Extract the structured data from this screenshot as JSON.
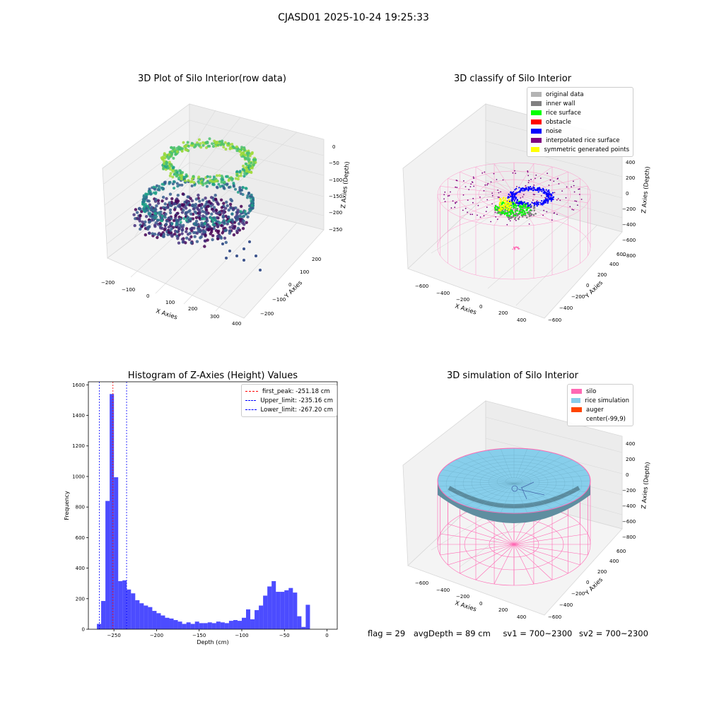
{
  "suptitle": "CJASD01 2025-10-24 19:25:33",
  "panels": {
    "raw": {
      "title": "3D Plot of Silo Interior(row data)",
      "xlabel": "X Axies",
      "ylabel": "Y Axies",
      "zlabel": "Z Axies (Depth)",
      "xticks": [
        "−200",
        "−100",
        "0",
        "100",
        "200",
        "300",
        "400"
      ],
      "yticks": [
        "−200",
        "−100",
        "0",
        "100",
        "200"
      ],
      "zticks": [
        "0",
        "−50",
        "−100",
        "−150",
        "−200",
        "−250"
      ]
    },
    "classify": {
      "title": "3D classify of Silo Interior",
      "xlabel": "X Axies",
      "ylabel": "Y Axies",
      "zlabel": "Z Axies (Depth)",
      "xticks": [
        "−600",
        "−400",
        "−200",
        "0",
        "200",
        "400"
      ],
      "yticks": [
        "−600",
        "−400",
        "−200",
        "0",
        "200",
        "400",
        "600"
      ],
      "zticks": [
        "400",
        "200",
        "0",
        "−200",
        "−400",
        "−600",
        "−800"
      ],
      "legend": [
        {
          "label": "original data",
          "color": "#b3b3b3"
        },
        {
          "label": "inner wall",
          "color": "#808080"
        },
        {
          "label": "rice surface",
          "color": "#00ff00"
        },
        {
          "label": "obstacle",
          "color": "#ff0000"
        },
        {
          "label": "noise",
          "color": "#0000ff"
        },
        {
          "label": "interpolated rice surface",
          "color": "#800080"
        },
        {
          "label": "symmetric generated points",
          "color": "#ffff00"
        }
      ]
    },
    "simulation": {
      "title": "3D simulation of Silo Interior",
      "xlabel": "X Axies",
      "ylabel": "Y Axies",
      "zlabel": "Z Axies (Depth)",
      "xticks": [
        "−600",
        "−400",
        "−200",
        "0",
        "200",
        "400"
      ],
      "yticks": [
        "−600",
        "−400",
        "−200",
        "0",
        "200",
        "400",
        "600"
      ],
      "zticks": [
        "400",
        "200",
        "0",
        "−200",
        "−400",
        "−600",
        "−800"
      ],
      "legend": [
        {
          "label": "silo",
          "color": "#ff69b4"
        },
        {
          "label": "rice simulation",
          "color": "#87ceeb"
        },
        {
          "label": "auger",
          "color": "#ff4500"
        },
        {
          "label": "center(-99,9)",
          "color": ""
        }
      ]
    }
  },
  "footer": {
    "flag": "flag = 29",
    "avg": "avgDepth = 89 cm",
    "sv1": "sv1 = 700~2300",
    "sv2": "sv2 = 700~2300"
  },
  "chart_data": [
    {
      "type": "scatter",
      "title": "3D Plot of Silo Interior(row data)",
      "xlabel": "X Axies",
      "ylabel": "Y Axies",
      "zlabel": "Z Axies (Depth)",
      "xlim": [
        -200,
        400
      ],
      "ylim": [
        -250,
        250
      ],
      "zlim": [
        -300,
        10
      ],
      "colormap": "viridis"
    },
    {
      "type": "scatter",
      "title": "3D classify of Silo Interior",
      "xlabel": "X Axies",
      "ylabel": "Y Axies",
      "zlabel": "Z Axies (Depth)",
      "xlim": [
        -700,
        500
      ],
      "ylim": [
        -650,
        650
      ],
      "zlim": [
        -900,
        450
      ],
      "series": [
        {
          "name": "original data",
          "color": "#b3b3b3"
        },
        {
          "name": "inner wall",
          "color": "#808080"
        },
        {
          "name": "rice surface",
          "color": "#00ff00"
        },
        {
          "name": "obstacle",
          "color": "#ff0000"
        },
        {
          "name": "noise",
          "color": "#0000ff"
        },
        {
          "name": "interpolated rice surface",
          "color": "#800080"
        },
        {
          "name": "symmetric generated points",
          "color": "#ffff00"
        }
      ]
    },
    {
      "type": "bar",
      "title": "Histogram of Z-Axies (Height) Values",
      "xlabel": "Depth (cm)",
      "ylabel": "Frequency",
      "xlim": [
        -280,
        12
      ],
      "ylim": [
        0,
        1620
      ],
      "bin_start": -270,
      "bin_width": 5,
      "values": [
        35,
        185,
        840,
        1540,
        995,
        315,
        320,
        260,
        235,
        190,
        170,
        155,
        145,
        120,
        105,
        90,
        75,
        70,
        60,
        50,
        35,
        45,
        35,
        50,
        40,
        40,
        45,
        40,
        50,
        45,
        40,
        55,
        60,
        55,
        75,
        130,
        65,
        125,
        155,
        220,
        280,
        315,
        245,
        245,
        255,
        270,
        240,
        85,
        15,
        160
      ],
      "color": "#0000ff",
      "xticks": [
        -250,
        -200,
        -150,
        -100,
        -50,
        0
      ],
      "yticks": [
        0,
        200,
        400,
        600,
        800,
        1000,
        1200,
        1400,
        1600
      ],
      "vlines": [
        {
          "label": "first_peak: -251.18 cm",
          "x": -251.18,
          "color": "#ff0000"
        },
        {
          "label": "Upper_limit: -235.16 cm",
          "x": -235.16,
          "color": "#0000ff"
        },
        {
          "label": "Lower_limit: -267.20 cm",
          "x": -267.2,
          "color": "#0000ff"
        }
      ]
    },
    {
      "type": "surface",
      "title": "3D simulation of Silo Interior",
      "xlabel": "X Axies",
      "ylabel": "Y Axies",
      "zlabel": "Z Axies (Depth)",
      "xlim": [
        -700,
        500
      ],
      "ylim": [
        -650,
        650
      ],
      "zlim": [
        -900,
        450
      ],
      "series": [
        {
          "name": "silo",
          "color": "#ff69b4"
        },
        {
          "name": "rice simulation",
          "color": "#87ceeb"
        },
        {
          "name": "auger",
          "color": "#ff4500"
        }
      ],
      "center": [
        -99,
        9
      ]
    }
  ]
}
